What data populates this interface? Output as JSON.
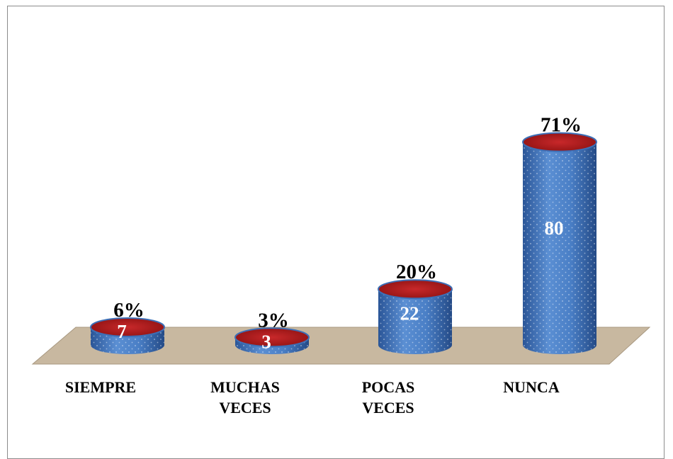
{
  "chart_data": {
    "type": "bar",
    "style": "3d-cylinder",
    "categories": [
      "SIEMPRE",
      "MUCHAS VECES",
      "POCAS VECES",
      "NUNCA"
    ],
    "category_lines": [
      [
        "SIEMPRE"
      ],
      [
        "MUCHAS",
        "VECES"
      ],
      [
        "POCAS",
        "VECES"
      ],
      [
        "NUNCA"
      ]
    ],
    "values": [
      7,
      3,
      22,
      80
    ],
    "percent_labels": [
      "6%",
      "3%",
      "20%",
      "71%"
    ],
    "title": "",
    "xlabel": "",
    "ylabel": "",
    "grid": false,
    "legend": "none",
    "colors": {
      "cylinder_body": "#3d6fb6",
      "cylinder_top": "#b01a1a",
      "floor": "#c8b8a0",
      "value_text": "#ffffff"
    }
  }
}
